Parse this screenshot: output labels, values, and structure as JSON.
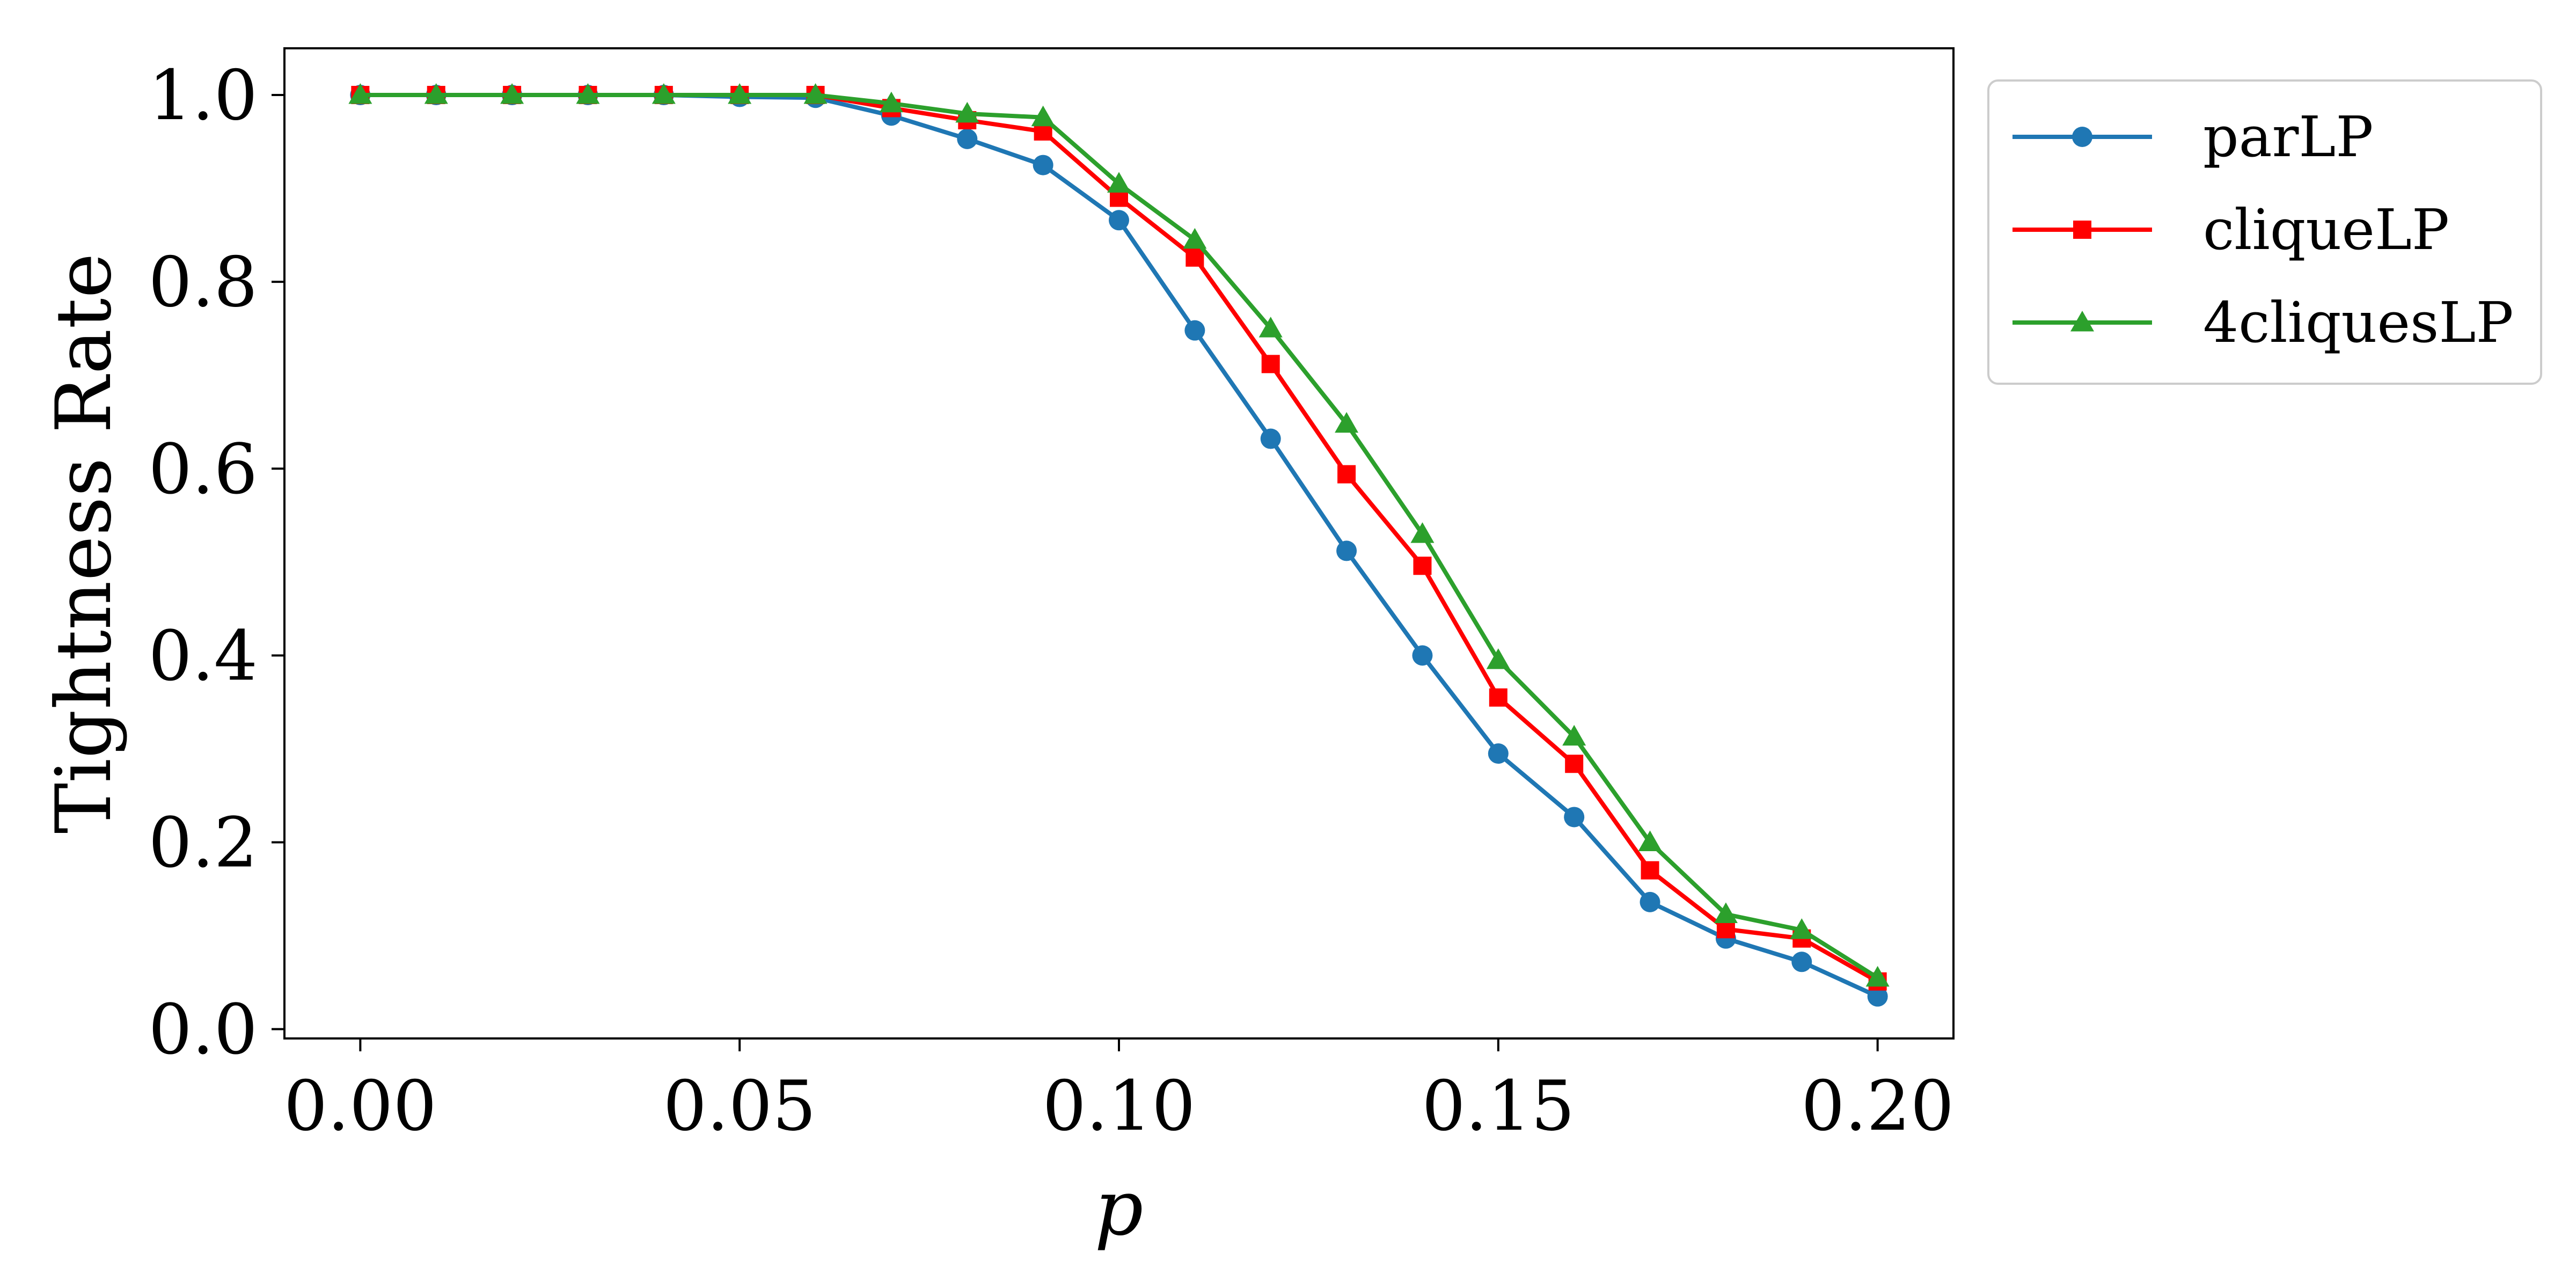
{
  "chart_data": {
    "type": "line",
    "title": "",
    "xlabel": "p",
    "ylabel": "Tightness Rate",
    "xlim": [
      -0.01,
      0.21
    ],
    "ylim": [
      -0.01,
      1.05
    ],
    "xticks": [
      0.0,
      0.05,
      0.1,
      0.15,
      0.2
    ],
    "xtick_labels": [
      "0.00",
      "0.05",
      "0.10",
      "0.15",
      "0.20"
    ],
    "yticks": [
      0.0,
      0.2,
      0.4,
      0.6,
      0.8,
      1.0
    ],
    "ytick_labels": [
      "0.0",
      "0.2",
      "0.4",
      "0.6",
      "0.8",
      "1.0"
    ],
    "grid": false,
    "legend_position": "outside-upper-right",
    "x": [
      0.0,
      0.01,
      0.02,
      0.03,
      0.04,
      0.05,
      0.06,
      0.07,
      0.08,
      0.09,
      0.1,
      0.11,
      0.12,
      0.13,
      0.14,
      0.15,
      0.16,
      0.17,
      0.18,
      0.19,
      0.2
    ],
    "series": [
      {
        "name": "parLP",
        "color": "#1f77b4",
        "marker": "circle",
        "values": [
          1.0,
          1.0,
          1.0,
          1.0,
          1.0,
          0.998,
          0.997,
          0.978,
          0.953,
          0.925,
          0.866,
          0.748,
          0.632,
          0.512,
          0.4,
          0.295,
          0.227,
          0.136,
          0.097,
          0.072,
          0.035
        ]
      },
      {
        "name": "cliqueLP",
        "color": "#ff0000",
        "marker": "square",
        "values": [
          1.0,
          1.0,
          1.0,
          1.0,
          1.0,
          1.0,
          1.0,
          0.986,
          0.973,
          0.961,
          0.89,
          0.826,
          0.712,
          0.594,
          0.496,
          0.355,
          0.284,
          0.17,
          0.107,
          0.097,
          0.051
        ]
      },
      {
        "name": "4cliquesLP",
        "color": "#2ca02c",
        "marker": "triangle",
        "values": [
          1.0,
          1.0,
          1.0,
          1.0,
          1.0,
          1.0,
          1.0,
          0.991,
          0.98,
          0.976,
          0.905,
          0.845,
          0.75,
          0.648,
          0.53,
          0.395,
          0.313,
          0.2,
          0.123,
          0.106,
          0.055
        ]
      }
    ]
  }
}
